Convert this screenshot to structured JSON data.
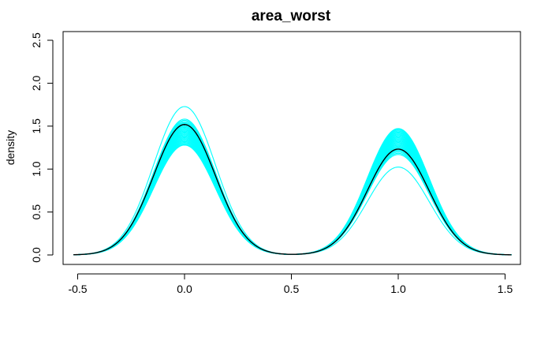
{
  "chart_data": {
    "type": "line",
    "title": "area_worst",
    "xlabel": "",
    "ylabel": "density",
    "xlim": [
      -0.55,
      1.55
    ],
    "ylim": [
      0,
      2.5
    ],
    "xticks": [
      "-0.5",
      "0.0",
      "0.5",
      "1.0",
      "1.5"
    ],
    "xtick_values": [
      -0.5,
      0,
      0.5,
      1,
      1.5
    ],
    "yticks": [
      "0.0",
      "0.5",
      "1.0",
      "1.5",
      "2.0",
      "2.5"
    ],
    "ytick_values": [
      0,
      0.5,
      1,
      1.5,
      2,
      2.5
    ],
    "x_range": [
      -0.52,
      1.53
    ],
    "component_centers": [
      0,
      1
    ],
    "component_sd": 0.145,
    "colors": {
      "reference": "#000000",
      "resamples": "#00ffff",
      "axis": "#000000"
    },
    "series": [
      {
        "weight_low": 0.552,
        "color_key": "reference"
      },
      {
        "weight_low": 0.628
      },
      {
        "weight_low": 0.575
      },
      {
        "weight_low": 0.57
      },
      {
        "weight_low": 0.565
      },
      {
        "weight_low": 0.56
      },
      {
        "weight_low": 0.556
      },
      {
        "weight_low": 0.552
      },
      {
        "weight_low": 0.548
      },
      {
        "weight_low": 0.544
      },
      {
        "weight_low": 0.54
      },
      {
        "weight_low": 0.536
      },
      {
        "weight_low": 0.532
      },
      {
        "weight_low": 0.528
      },
      {
        "weight_low": 0.524
      },
      {
        "weight_low": 0.52
      },
      {
        "weight_low": 0.516
      },
      {
        "weight_low": 0.512
      },
      {
        "weight_low": 0.508
      },
      {
        "weight_low": 0.504
      },
      {
        "weight_low": 0.5
      },
      {
        "weight_low": 0.496
      },
      {
        "weight_low": 0.492
      },
      {
        "weight_low": 0.488
      },
      {
        "weight_low": 0.484
      },
      {
        "weight_low": 0.48
      },
      {
        "weight_low": 0.476
      },
      {
        "weight_low": 0.472
      },
      {
        "weight_low": 0.468
      },
      {
        "weight_low": 0.465
      }
    ]
  }
}
